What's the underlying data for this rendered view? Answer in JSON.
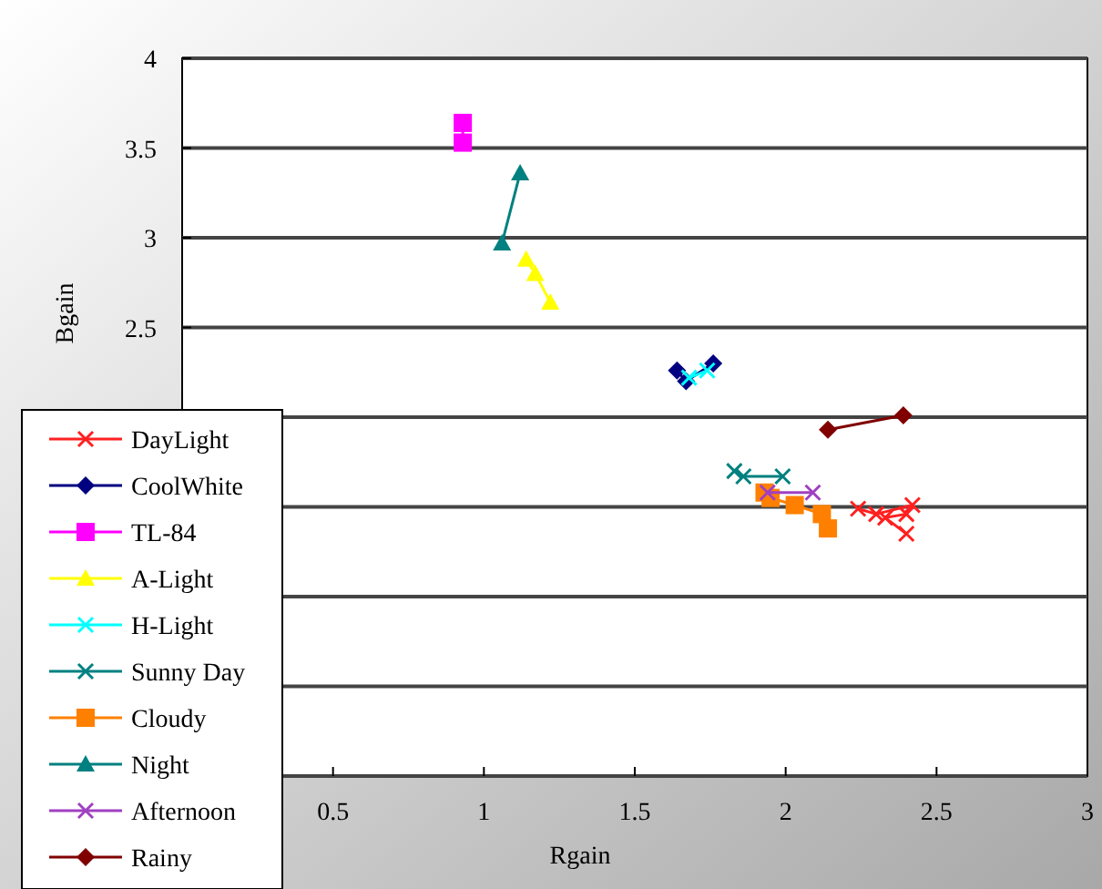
{
  "chart_data": {
    "type": "line",
    "xlabel": "Rgain",
    "ylabel": "Bgain",
    "xlim": [
      0,
      3
    ],
    "ylim": [
      0,
      4
    ],
    "xticks": [
      {
        "value": 0,
        "label": null
      },
      0.5,
      1,
      1.5,
      2,
      2.5,
      3
    ],
    "yticks": [
      {
        "value": 0,
        "label": null
      },
      {
        "value": 0.5,
        "label": null
      },
      {
        "value": 1,
        "label": null
      },
      {
        "value": 1.5,
        "label": null
      },
      {
        "value": 2,
        "label": null
      },
      2.5,
      3,
      3.5,
      4
    ],
    "grid": "y",
    "legend": "bottom left",
    "line_style": "solid",
    "series": [
      {
        "name": "DayLight",
        "color": "#ff2020",
        "marker": "cross",
        "x": [
          2.24,
          2.3,
          2.42,
          2.4,
          2.33,
          2.4
        ],
        "values": [
          1.49,
          1.46,
          1.51,
          1.46,
          1.44,
          1.35
        ]
      },
      {
        "name": "CoolWhite",
        "color": "#000080",
        "marker": "diamond",
        "x": [
          1.64,
          1.67,
          1.76
        ],
        "values": [
          2.26,
          2.2,
          2.3
        ]
      },
      {
        "name": "TL-84",
        "color": "#ff00ff",
        "marker": "square",
        "x": [
          0.93,
          0.93
        ],
        "values": [
          3.64,
          3.53
        ]
      },
      {
        "name": "A-Light",
        "color": "#ffff00",
        "marker": "triangle",
        "x": [
          1.14,
          1.17,
          1.22
        ],
        "values": [
          2.88,
          2.8,
          2.64
        ]
      },
      {
        "name": "H-Light",
        "color": "#00ffff",
        "marker": "cross",
        "x": [
          1.68,
          1.74
        ],
        "values": [
          2.22,
          2.26
        ]
      },
      {
        "name": "Sunny Day",
        "color": "#008080",
        "marker": "cross",
        "x": [
          1.83,
          1.86,
          1.99
        ],
        "values": [
          1.7,
          1.67,
          1.67
        ]
      },
      {
        "name": "Cloudy",
        "color": "#ff8000",
        "marker": "square",
        "x": [
          1.93,
          1.95,
          2.03,
          2.12,
          2.14
        ],
        "values": [
          1.58,
          1.55,
          1.51,
          1.46,
          1.38
        ]
      },
      {
        "name": "Night",
        "color": "#008080",
        "marker": "triangle",
        "x": [
          1.12,
          1.06
        ],
        "values": [
          3.36,
          2.97
        ]
      },
      {
        "name": "Afternoon",
        "color": "#a040c0",
        "marker": "cross",
        "x": [
          1.94,
          2.09
        ],
        "values": [
          1.58,
          1.58
        ]
      },
      {
        "name": "Rainy",
        "color": "#800000",
        "marker": "diamond",
        "x": [
          2.14,
          2.39
        ],
        "values": [
          1.93,
          2.01
        ]
      }
    ]
  }
}
